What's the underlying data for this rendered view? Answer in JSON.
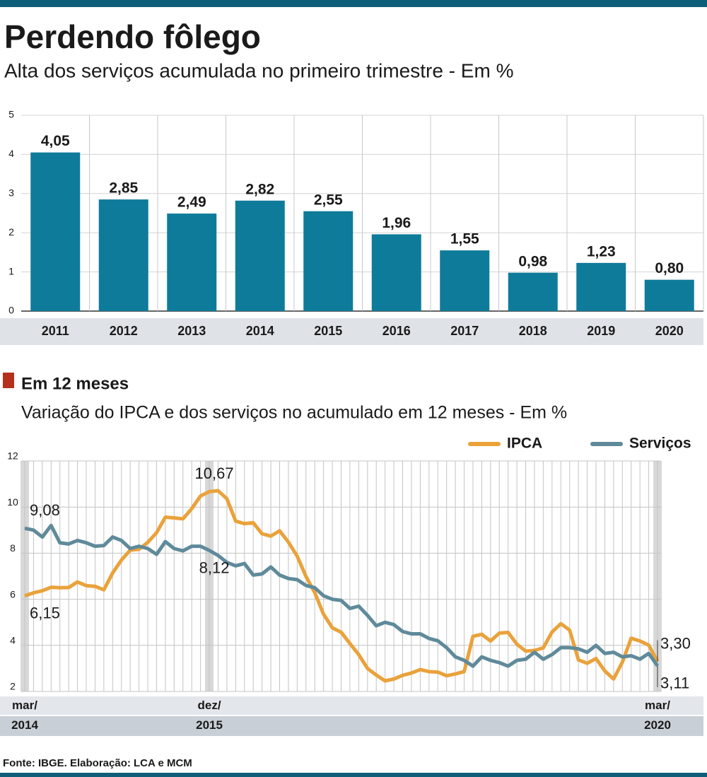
{
  "chart_data": [
    {
      "type": "bar",
      "title": "Perdendo fôlego",
      "subtitle": "Alta dos serviços acumulada no primeiro trimestre - Em %",
      "categories": [
        "2011",
        "2012",
        "2013",
        "2014",
        "2015",
        "2016",
        "2017",
        "2018",
        "2019",
        "2020"
      ],
      "values": [
        4.05,
        2.85,
        2.49,
        2.82,
        2.55,
        1.96,
        1.55,
        0.98,
        1.23,
        0.8
      ],
      "value_labels": [
        "4,05",
        "2,85",
        "2,49",
        "2,82",
        "2,55",
        "1,96",
        "1,55",
        "0,98",
        "1,23",
        "0,80"
      ],
      "color": "#0f7b9a",
      "ylim": [
        0,
        5
      ],
      "yticks": [
        0,
        1,
        2,
        3,
        4,
        5
      ],
      "grid": true
    },
    {
      "type": "line",
      "title": "Em 12 meses",
      "subtitle": "Variação do IPCA e dos serviços no acumulado em 12 meses - Em %",
      "categories": [
        "mar/ 2014",
        null,
        null,
        null,
        null,
        null,
        null,
        null,
        null,
        null,
        null,
        null,
        null,
        null,
        null,
        null,
        null,
        null,
        null,
        null,
        null,
        "dez/ 2015",
        null,
        null,
        null,
        null,
        null,
        null,
        null,
        null,
        null,
        null,
        null,
        null,
        null,
        null,
        null,
        null,
        null,
        null,
        null,
        null,
        null,
        null,
        null,
        null,
        null,
        null,
        null,
        null,
        null,
        null,
        null,
        null,
        null,
        null,
        null,
        null,
        null,
        null,
        null,
        null,
        null,
        null,
        null,
        null,
        null,
        null,
        null,
        null,
        null,
        null,
        "mar/ 2020"
      ],
      "series": [
        {
          "name": "IPCA",
          "color": "#eaa23b",
          "values": [
            6.15,
            6.28,
            6.37,
            6.52,
            6.5,
            6.51,
            6.75,
            6.59,
            6.56,
            6.41,
            7.14,
            7.7,
            8.13,
            8.17,
            8.47,
            8.89,
            9.56,
            9.53,
            9.49,
            9.93,
            10.48,
            10.67,
            10.71,
            10.36,
            9.39,
            9.28,
            9.32,
            8.84,
            8.74,
            8.97,
            8.48,
            7.87,
            6.99,
            6.29,
            5.35,
            4.76,
            4.57,
            4.08,
            3.6,
            3.0,
            2.71,
            2.46,
            2.54,
            2.7,
            2.8,
            2.95,
            2.86,
            2.84,
            2.68,
            2.76,
            2.86,
            4.39,
            4.48,
            4.19,
            4.53,
            4.56,
            4.05,
            3.75,
            3.78,
            3.89,
            4.58,
            4.94,
            4.66,
            3.37,
            3.22,
            3.43,
            2.89,
            2.54,
            3.27,
            4.31,
            4.19,
            4.01,
            3.3
          ],
          "value_labels": [
            "6,15",
            null,
            null,
            null,
            null,
            null,
            null,
            null,
            null,
            null,
            null,
            null,
            null,
            null,
            null,
            null,
            null,
            null,
            null,
            null,
            null,
            "10,67",
            null,
            null,
            null,
            null,
            null,
            null,
            null,
            null,
            null,
            null,
            null,
            null,
            null,
            null,
            null,
            null,
            null,
            null,
            null,
            null,
            null,
            null,
            null,
            null,
            null,
            null,
            null,
            null,
            null,
            null,
            null,
            null,
            null,
            null,
            null,
            null,
            null,
            null,
            null,
            null,
            null,
            null,
            null,
            null,
            null,
            null,
            null,
            null,
            null,
            null,
            "3,30"
          ]
        },
        {
          "name": "Serviços",
          "color": "#5f8a9a",
          "values": [
            9.08,
            9.0,
            8.7,
            9.2,
            8.45,
            8.4,
            8.55,
            8.45,
            8.3,
            8.33,
            8.7,
            8.55,
            8.2,
            8.3,
            8.2,
            7.95,
            8.5,
            8.2,
            8.1,
            8.3,
            8.3,
            8.12,
            7.9,
            7.6,
            7.45,
            7.55,
            7.05,
            7.1,
            7.4,
            7.05,
            6.9,
            6.85,
            6.6,
            6.5,
            6.15,
            6.0,
            5.95,
            5.6,
            5.7,
            5.3,
            4.85,
            5.0,
            4.9,
            4.6,
            4.5,
            4.5,
            4.3,
            4.2,
            3.9,
            3.5,
            3.35,
            3.1,
            3.5,
            3.35,
            3.25,
            3.1,
            3.35,
            3.4,
            3.7,
            3.4,
            3.6,
            3.9,
            3.9,
            3.85,
            3.7,
            4.0,
            3.65,
            3.7,
            3.5,
            3.55,
            3.4,
            3.65,
            3.11
          ],
          "value_labels": [
            "9,08",
            null,
            null,
            null,
            null,
            null,
            null,
            null,
            null,
            null,
            null,
            null,
            null,
            null,
            null,
            null,
            null,
            null,
            null,
            null,
            null,
            "8,12",
            null,
            null,
            null,
            null,
            null,
            null,
            null,
            null,
            null,
            null,
            null,
            null,
            null,
            null,
            null,
            null,
            null,
            null,
            null,
            null,
            null,
            null,
            null,
            null,
            null,
            null,
            null,
            null,
            null,
            null,
            null,
            null,
            null,
            null,
            null,
            null,
            null,
            null,
            null,
            null,
            null,
            null,
            null,
            null,
            null,
            null,
            null,
            null,
            null,
            null,
            "3,11"
          ]
        }
      ],
      "ylim": [
        2,
        12
      ],
      "yticks": [
        2,
        4,
        6,
        8,
        10,
        12
      ],
      "grid": true,
      "legend": "top-right"
    }
  ],
  "footer": {
    "source": "Fonte: IBGE. Elaboração: LCA e MCM"
  }
}
